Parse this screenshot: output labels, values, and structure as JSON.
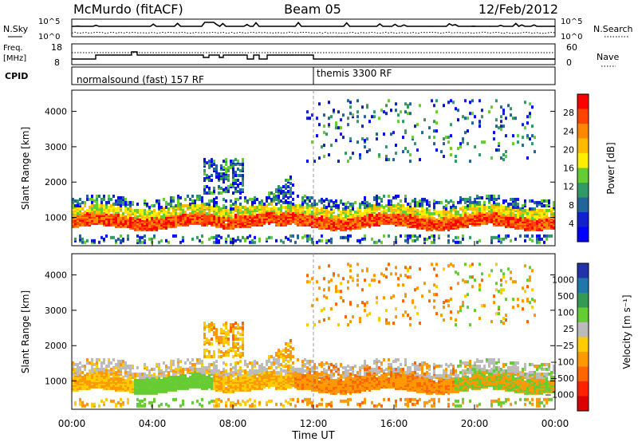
{
  "header": {
    "station": "McMurdo (fitACF)",
    "beam": "Beam 05",
    "date": "12/Feb/2012"
  },
  "strips": {
    "nsky_label": "N.Sky",
    "nsearch_label": "N.Search",
    "count_ticks": [
      "10^5",
      "10^0"
    ],
    "freq_label": "Freq.",
    "freq_unit": "[MHz]",
    "freq_ticks": [
      "18",
      "8"
    ],
    "nave_label": "Nave",
    "nave_ticks": [
      "60",
      "0"
    ],
    "cpid_label": "CPID",
    "cpid_modes": [
      {
        "label": "normalsound (fast) 157 RF",
        "start_hour": 0
      },
      {
        "label": "themis 3300 RF",
        "start_hour": 12
      }
    ]
  },
  "chart_data": [
    {
      "type": "heatmap",
      "name": "power",
      "xlabel": "",
      "ylabel": "Slant Range [km]",
      "x_range_hours": [
        0,
        24
      ],
      "ylim": [
        200,
        4600
      ],
      "yticks": [
        1000,
        2000,
        3000,
        4000
      ],
      "colorbar": {
        "label": "Power [dB]",
        "ticks": [
          "28",
          "24",
          "20",
          "16",
          "12",
          "8",
          "4"
        ],
        "colors": [
          "#ff0000",
          "#ff4400",
          "#ff8800",
          "#ffbb00",
          "#ffee00",
          "#66cc33",
          "#339966",
          "#226699",
          "#1122cc",
          "#0000ff"
        ]
      },
      "bands": [
        {
          "y": [
            700,
            1000
          ],
          "level": 0.9
        },
        {
          "y": [
            1000,
            1200
          ],
          "level": 0.6
        },
        {
          "y": [
            1200,
            1500
          ],
          "level": 0.25
        }
      ]
    },
    {
      "type": "heatmap",
      "name": "velocity",
      "xlabel": "Time UT",
      "ylabel": "Slant Range [km]",
      "x_range_hours": [
        0,
        24
      ],
      "ylim": [
        200,
        4600
      ],
      "yticks": [
        1000,
        2000,
        3000,
        4000
      ],
      "xticks": [
        "00:00",
        "04:00",
        "08:00",
        "12:00",
        "16:00",
        "20:00",
        "00:00"
      ],
      "colorbar": {
        "label": "Velocity [m s⁻¹]",
        "ticks": [
          "1000",
          "500",
          "100",
          "25",
          "−25",
          "−100",
          "−500",
          "−1000"
        ],
        "colors": [
          "#2233aa",
          "#2277aa",
          "#339955",
          "#66cc33",
          "#bbbbbb",
          "#ffcc00",
          "#ff9900",
          "#ff6600",
          "#ff2200",
          "#dd0000"
        ]
      }
    }
  ]
}
